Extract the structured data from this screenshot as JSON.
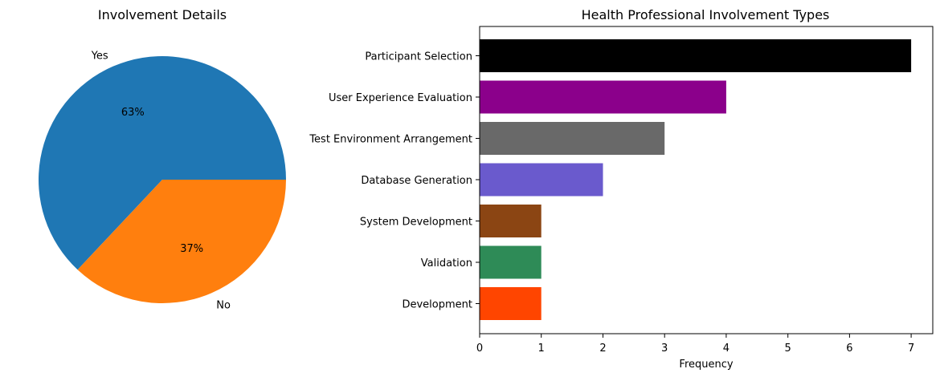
{
  "chart_data": [
    {
      "type": "pie",
      "title": "Involvement Details",
      "labels": [
        "Yes",
        "No"
      ],
      "values": [
        63,
        37
      ],
      "pct_labels": [
        "63%",
        "37%"
      ],
      "colors": [
        "#1f77b4",
        "#ff7f0e"
      ]
    },
    {
      "type": "bar",
      "orientation": "horizontal",
      "title": "Health Professional Involvement Types",
      "xlabel": "Frequency",
      "ylabel": "",
      "xlim": [
        0,
        7.35
      ],
      "xticks": [
        "0",
        "1",
        "2",
        "3",
        "4",
        "5",
        "6",
        "7"
      ],
      "categories": [
        "Participant Selection",
        "User Experience Evaluation",
        "Test Environment Arrangement",
        "Database Generation",
        "System Development",
        "Validation",
        "Development"
      ],
      "values": [
        7,
        4,
        3,
        2,
        1,
        1,
        1
      ],
      "colors": [
        "#000000",
        "#8b008b",
        "#696969",
        "#6a5acd",
        "#8b4513",
        "#2e8b57",
        "#ff4500"
      ],
      "grid": false
    }
  ]
}
